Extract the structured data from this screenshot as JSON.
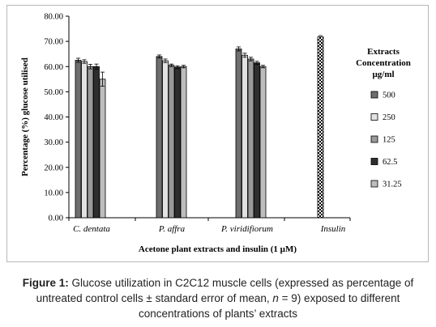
{
  "chart_data": {
    "type": "bar",
    "xlabel": "Acetone plant extracts and insulin (1 µM)",
    "ylabel": "Percentage (%) glucose utilised",
    "ylim": [
      0,
      80
    ],
    "yticks": [
      "0.00",
      "10.00",
      "20.00",
      "30.00",
      "40.00",
      "50.00",
      "60.00",
      "70.00",
      "80.00"
    ],
    "categories": [
      "C. dentata",
      "P. affra",
      "P. viridifiorum",
      "Insulin"
    ],
    "legend_title": [
      "Extracts",
      "Concentration",
      "µg/ml"
    ],
    "legend_position": "right",
    "grid": false,
    "series": [
      {
        "name": "500",
        "color": "#6e6e6e",
        "values": [
          62.5,
          64.0,
          67.0,
          null
        ],
        "errors": [
          0.8,
          0.6,
          0.8,
          null
        ]
      },
      {
        "name": "250",
        "color": "#e2e2e2",
        "values": [
          62.0,
          62.3,
          64.5,
          null
        ],
        "errors": [
          0.7,
          0.7,
          0.8,
          null
        ]
      },
      {
        "name": "125",
        "color": "#9a9a9a",
        "values": [
          60.0,
          60.5,
          63.0,
          null
        ],
        "errors": [
          0.9,
          0.5,
          0.7,
          null
        ]
      },
      {
        "name": "62.5",
        "color": "#2e2e2e",
        "values": [
          60.0,
          59.8,
          61.5,
          null
        ],
        "errors": [
          1.0,
          0.5,
          0.6,
          null
        ]
      },
      {
        "name": "31.25",
        "color": "#bdbdbd",
        "values": [
          55.0,
          60.0,
          60.0,
          null
        ],
        "errors": [
          2.8,
          0.5,
          0.5,
          null
        ]
      }
    ],
    "reference": {
      "name": "Insulin",
      "value": 71.8,
      "error": 0.5,
      "pattern": "checkerboard"
    }
  },
  "caption": {
    "label": "Figure 1:",
    "text": "Glucose utilization in C2C12 muscle cells (expressed as percentage of untreated control cells ± standard error of mean, ",
    "n_symbol": "n",
    "text_end": " = 9) exposed to different concentrations of plants’ extracts"
  }
}
